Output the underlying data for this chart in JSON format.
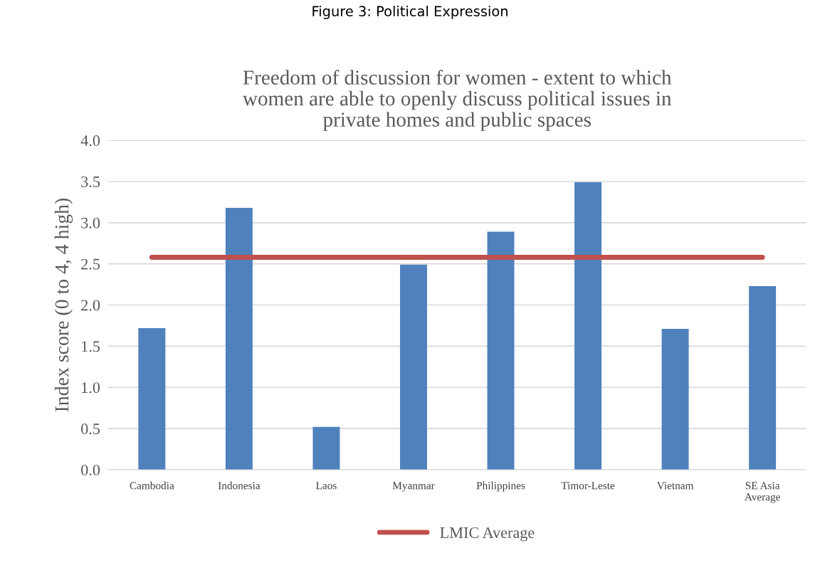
{
  "chart_data": {
    "type": "bar",
    "title": "Freedom of discussion for women - extent to which\nwomen are able to openly discuss political issues in\nprivate homes and public spaces",
    "ylabel": "Index score (0 to 4, 4 high)",
    "annotations": [
      "Figure 3: Political Expression"
    ],
    "categories": [
      "Cambodia",
      "Indonesia",
      "Laos",
      "Myanmar",
      "Philippines",
      "Timor-Leste",
      "Vietnam",
      "SE Asia\nAverage"
    ],
    "series": [
      {
        "color": "#4f81bd",
        "values": [
          1.72,
          3.18,
          0.52,
          2.49,
          2.89,
          3.49,
          1.71,
          2.23
        ]
      },
      {
        "type": "line",
        "name": "LMIC Average",
        "color": "#c0504d",
        "values": [
          2.58,
          2.58,
          2.58,
          2.58,
          2.58,
          2.58,
          2.58,
          2.58
        ]
      }
    ],
    "ylim": [
      0,
      4
    ],
    "yticks": [
      {
        "value": 0,
        "label": "0.0"
      },
      {
        "value": 0.5,
        "label": "0.5"
      },
      {
        "value": 1,
        "label": "1.0"
      },
      {
        "value": 1.5,
        "label": "1.5"
      },
      {
        "value": 2,
        "label": "2.0"
      },
      {
        "value": 2.5,
        "label": "2.5"
      },
      {
        "value": 3,
        "label": "3.0"
      },
      {
        "value": 3.5,
        "label": "3.5"
      },
      {
        "value": 4,
        "label": "4.0"
      }
    ],
    "grid": "y",
    "legend": "bottom"
  }
}
